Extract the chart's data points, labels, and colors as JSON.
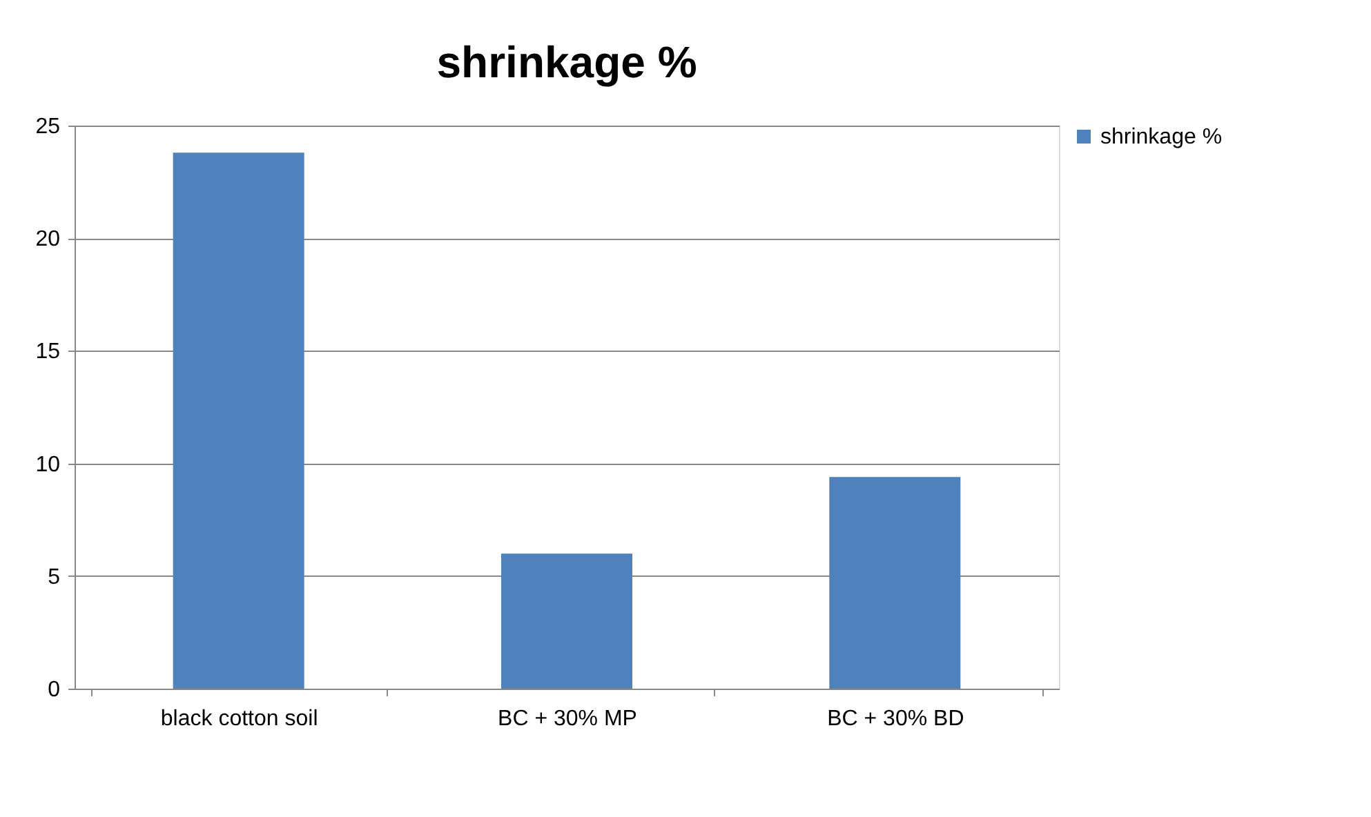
{
  "chart_data": {
    "type": "bar",
    "title": "shrinkage %",
    "categories": [
      "black cotton soil",
      "BC + 30% MP",
      "BC + 30% BD"
    ],
    "series": [
      {
        "name": "shrinkage %",
        "color": "#4f81bd",
        "values": [
          23.8,
          6.0,
          9.4
        ]
      }
    ],
    "ylim": [
      0,
      25
    ],
    "yticks": [
      0,
      5,
      10,
      15,
      20,
      25
    ],
    "grid": "y",
    "legend": "right"
  }
}
